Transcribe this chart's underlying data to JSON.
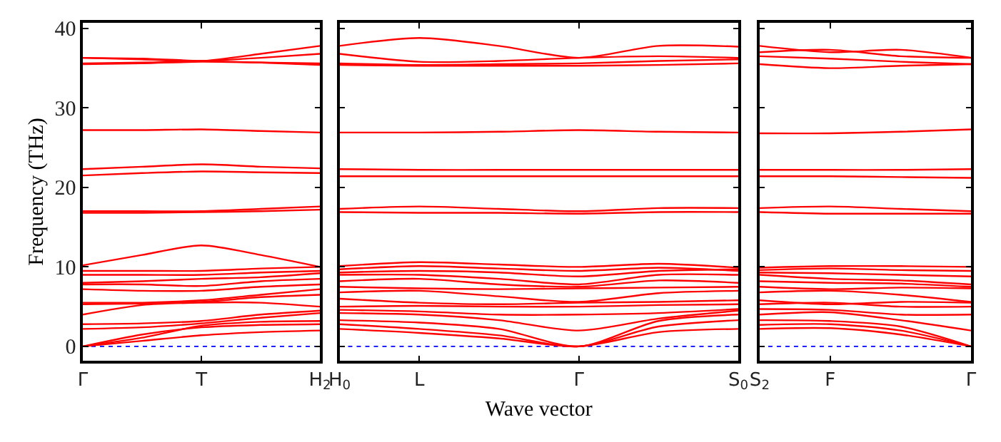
{
  "chart_data": [
    {
      "type": "line",
      "ylabel": "Frequency (THz)",
      "categories": [
        "Γ",
        null,
        "T",
        null,
        "H$_{2}$"
      ],
      "ylim": [
        -1.8,
        40.7
      ],
      "yticks": [
        0,
        10,
        20,
        30,
        40
      ],
      "ref_lines": [
        {
          "axis": "y",
          "value": 0,
          "color": "#0000ff",
          "line_style": "dotted"
        }
      ],
      "series": [
        {
          "color": "#ff0000",
          "values": [
            0,
            0.7,
            1.4,
            1.8,
            2.0
          ]
        },
        {
          "color": "#ff0000",
          "values": [
            0,
            1.5,
            2.4,
            2.7,
            2.8
          ]
        },
        {
          "color": "#ff0000",
          "values": [
            0,
            1.1,
            2.6,
            3.1,
            3.2
          ]
        },
        {
          "color": "#ff0000",
          "values": [
            2.2,
            2.4,
            2.9,
            3.6,
            4.2
          ]
        },
        {
          "color": "#ff0000",
          "values": [
            2.8,
            2.9,
            3.2,
            4,
            4.5
          ]
        },
        {
          "color": "#ff0000",
          "values": [
            4,
            5.2,
            5.5,
            5.5,
            5
          ]
        },
        {
          "color": "#ff0000",
          "values": [
            5.3,
            5.4,
            5.6,
            6.2,
            6.5
          ]
        },
        {
          "color": "#ff0000",
          "values": [
            5.5,
            5.5,
            5.8,
            6.5,
            7.2
          ]
        },
        {
          "color": "#ff0000",
          "values": [
            7.2,
            7,
            7,
            7.5,
            7.8
          ]
        },
        {
          "color": "#ff0000",
          "values": [
            7.8,
            7.8,
            7.6,
            8.2,
            8.5
          ]
        },
        {
          "color": "#ff0000",
          "values": [
            8,
            8.2,
            8.5,
            8.7,
            9.2
          ]
        },
        {
          "color": "#ff0000",
          "values": [
            9,
            9,
            9,
            9.3,
            9.5
          ]
        },
        {
          "color": "#ff0000",
          "values": [
            9.5,
            9.5,
            9.5,
            9.8,
            10
          ]
        },
        {
          "color": "#ff0000",
          "values": [
            10.2,
            11.5,
            12.7,
            11.5,
            10
          ]
        },
        {
          "color": "#ff0000",
          "values": [
            16.8,
            16.8,
            16.9,
            17,
            17.2
          ]
        },
        {
          "color": "#ff0000",
          "values": [
            17,
            17,
            17,
            17.3,
            17.6
          ]
        },
        {
          "color": "#ff0000",
          "values": [
            21.5,
            21.8,
            22,
            21.9,
            21.8
          ]
        },
        {
          "color": "#ff0000",
          "values": [
            22.3,
            22.6,
            22.9,
            22.6,
            22.4
          ]
        },
        {
          "color": "#ff0000",
          "values": [
            27.2,
            27.2,
            27.3,
            27.1,
            26.9
          ]
        },
        {
          "color": "#ff0000",
          "values": [
            35.5,
            35.6,
            35.8,
            35.7,
            35.6
          ]
        },
        {
          "color": "#ff0000",
          "values": [
            36.3,
            36.2,
            35.9,
            35.7,
            35.4
          ]
        },
        {
          "color": "#ff0000",
          "values": [
            36.3,
            36.1,
            35.9,
            36.8,
            37.8
          ]
        },
        {
          "color": "#ff0000",
          "values": [
            35.6,
            35.7,
            35.9,
            36.3,
            36.8
          ]
        }
      ]
    },
    {
      "type": "line",
      "xlabel": "Wave vector",
      "categories": [
        "H$_{0}$",
        "L",
        null,
        "Γ",
        null,
        "S$_{0}$"
      ],
      "ylim": [
        -1.8,
        40.7
      ],
      "tick_labels": "x",
      "ref_lines": [
        {
          "axis": "y",
          "value": 0,
          "color": "#0000ff",
          "line_style": "dotted"
        }
      ],
      "series": [
        {
          "color": "#ff0000",
          "values": [
            37.8,
            38.8,
            37.8,
            36.3,
            37.8,
            37.7
          ]
        },
        {
          "color": "#ff0000",
          "values": [
            36.8,
            35.8,
            35.9,
            36.3,
            36.5,
            36.3
          ]
        },
        {
          "color": "#ff0000",
          "values": [
            35.6,
            35.4,
            35.5,
            35.6,
            35.9,
            36.1
          ]
        },
        {
          "color": "#ff0000",
          "values": [
            35.4,
            35.3,
            35.3,
            35.3,
            35.4,
            35.6
          ]
        },
        {
          "color": "#ff0000",
          "values": [
            26.9,
            26.9,
            27.0,
            27.2,
            27.0,
            26.9
          ]
        },
        {
          "color": "#ff0000",
          "values": [
            22.3,
            22.2,
            22.2,
            22.2,
            22.2,
            22.2
          ]
        },
        {
          "color": "#ff0000",
          "values": [
            21.4,
            21.4,
            21.4,
            21.4,
            21.4,
            21.4
          ]
        },
        {
          "color": "#ff0000",
          "values": [
            17.3,
            17.6,
            17.3,
            17.0,
            17.4,
            17.4
          ]
        },
        {
          "color": "#ff0000",
          "values": [
            16.9,
            16.8,
            16.8,
            16.7,
            16.9,
            16.9
          ]
        },
        {
          "color": "#ff0000",
          "values": [
            2.2,
            1.7,
            1.0,
            0,
            1.8,
            2.2
          ]
        },
        {
          "color": "#ff0000",
          "values": [
            2.8,
            2.2,
            1.4,
            0,
            2.5,
            3.3
          ]
        },
        {
          "color": "#ff0000",
          "values": [
            3.3,
            3.0,
            2.2,
            0,
            3.2,
            4.0
          ]
        },
        {
          "color": "#ff0000",
          "values": [
            4.2,
            4.0,
            3.3,
            2.0,
            3.5,
            4.5
          ]
        },
        {
          "color": "#ff0000",
          "values": [
            4.6,
            4.4,
            4.0,
            4.0,
            4.2,
            4.7
          ]
        },
        {
          "color": "#ff0000",
          "values": [
            5.0,
            5.1,
            5.0,
            5.0,
            5.2,
            5.3
          ]
        },
        {
          "color": "#ff0000",
          "values": [
            6.0,
            5.5,
            5.3,
            5.5,
            5.6,
            5.8
          ]
        },
        {
          "color": "#ff0000",
          "values": [
            6.8,
            7.0,
            6.3,
            5.6,
            6.7,
            7.0
          ]
        },
        {
          "color": "#ff0000",
          "values": [
            7.5,
            7.3,
            7.2,
            7.3,
            7.4,
            7.5
          ]
        },
        {
          "color": "#ff0000",
          "values": [
            8.2,
            8.5,
            7.8,
            7.5,
            8.3,
            8.0
          ]
        },
        {
          "color": "#ff0000",
          "values": [
            9.0,
            9.0,
            8.5,
            7.8,
            9.0,
            9.0
          ]
        },
        {
          "color": "#ff0000",
          "values": [
            9.3,
            9.5,
            9.3,
            8.8,
            9.5,
            9.7
          ]
        },
        {
          "color": "#ff0000",
          "values": [
            9.7,
            10.1,
            9.8,
            9.5,
            9.9,
            9.5
          ]
        },
        {
          "color": "#ff0000",
          "values": [
            10.1,
            10.6,
            10.3,
            10.0,
            10.4,
            9.9
          ]
        }
      ]
    },
    {
      "type": "line",
      "categories": [
        "S$_{2}$",
        "F",
        null,
        "Γ"
      ],
      "ylim": [
        -1.8,
        40.7
      ],
      "tick_labels": "x",
      "ref_lines": [
        {
          "axis": "y",
          "value": 0,
          "color": "#0000ff",
          "line_style": "dotted"
        }
      ],
      "series": [
        {
          "color": "#ff0000",
          "values": [
            37.8,
            37.0,
            37.3,
            36.3
          ]
        },
        {
          "color": "#ff0000",
          "values": [
            37.0,
            37.3,
            36.5,
            36.3
          ]
        },
        {
          "color": "#ff0000",
          "values": [
            36.5,
            36.2,
            35.8,
            35.5
          ]
        },
        {
          "color": "#ff0000",
          "values": [
            35.5,
            35.0,
            35.3,
            35.5
          ]
        },
        {
          "color": "#ff0000",
          "values": [
            26.8,
            26.8,
            27.0,
            27.3
          ]
        },
        {
          "color": "#ff0000",
          "values": [
            22.2,
            22.2,
            22.2,
            22.3
          ]
        },
        {
          "color": "#ff0000",
          "values": [
            21.4,
            21.4,
            21.3,
            21.2
          ]
        },
        {
          "color": "#ff0000",
          "values": [
            17.4,
            17.6,
            17.3,
            17.0
          ]
        },
        {
          "color": "#ff0000",
          "values": [
            16.9,
            16.7,
            16.7,
            16.7
          ]
        },
        {
          "color": "#ff0000",
          "values": [
            2.2,
            2.3,
            1.5,
            0
          ]
        },
        {
          "color": "#ff0000",
          "values": [
            2.7,
            2.8,
            2.0,
            0
          ]
        },
        {
          "color": "#ff0000",
          "values": [
            3.3,
            3.2,
            2.5,
            0
          ]
        },
        {
          "color": "#ff0000",
          "values": [
            4.0,
            4.3,
            3.3,
            2.0
          ]
        },
        {
          "color": "#ff0000",
          "values": [
            4.7,
            4.6,
            4.0,
            4.0
          ]
        },
        {
          "color": "#ff0000",
          "values": [
            5.3,
            5.5,
            5.0,
            5.0
          ]
        },
        {
          "color": "#ff0000",
          "values": [
            5.8,
            5.3,
            5.6,
            5.5
          ]
        },
        {
          "color": "#ff0000",
          "values": [
            6.8,
            7.0,
            6.5,
            5.6
          ]
        },
        {
          "color": "#ff0000",
          "values": [
            7.5,
            7.2,
            7.4,
            7.3
          ]
        },
        {
          "color": "#ff0000",
          "values": [
            8.2,
            8.0,
            7.9,
            7.5
          ]
        },
        {
          "color": "#ff0000",
          "values": [
            9.0,
            8.5,
            8.3,
            7.8
          ]
        },
        {
          "color": "#ff0000",
          "values": [
            9.3,
            9.2,
            9.0,
            8.8
          ]
        },
        {
          "color": "#ff0000",
          "values": [
            9.6,
            9.8,
            9.6,
            9.5
          ]
        },
        {
          "color": "#ff0000",
          "values": [
            9.9,
            10.1,
            10.1,
            10.0
          ]
        }
      ]
    }
  ]
}
